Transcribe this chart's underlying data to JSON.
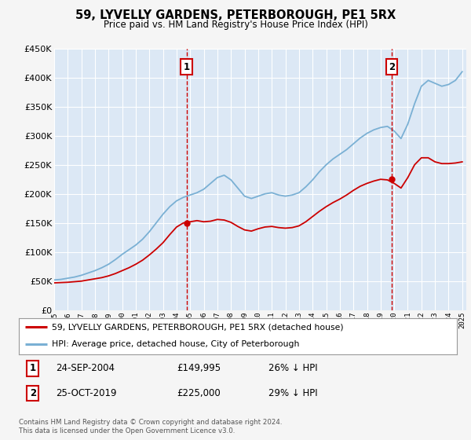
{
  "title": "59, LYVELLY GARDENS, PETERBOROUGH, PE1 5RX",
  "subtitle": "Price paid vs. HM Land Registry's House Price Index (HPI)",
  "fig_bg_color": "#f5f5f5",
  "plot_bg_color": "#dce8f5",
  "sale1_price": 149995,
  "sale1_x": 2004.73,
  "sale2_price": 225000,
  "sale2_x": 2019.82,
  "ylim": [
    0,
    450000
  ],
  "yticks": [
    0,
    50000,
    100000,
    150000,
    200000,
    250000,
    300000,
    350000,
    400000,
    450000
  ],
  "red_line_color": "#cc0000",
  "blue_line_color": "#7ab0d4",
  "dashed_color": "#cc0000",
  "legend_line1": "59, LYVELLY GARDENS, PETERBOROUGH, PE1 5RX (detached house)",
  "legend_line2": "HPI: Average price, detached house, City of Peterborough",
  "footer": "Contains HM Land Registry data © Crown copyright and database right 2024.\nThis data is licensed under the Open Government Licence v3.0.",
  "hpi_years": [
    1995,
    1995.5,
    1996,
    1996.5,
    1997,
    1997.5,
    1998,
    1998.5,
    1999,
    1999.5,
    2000,
    2000.5,
    2001,
    2001.5,
    2002,
    2002.5,
    2003,
    2003.5,
    2004,
    2004.5,
    2005,
    2005.5,
    2006,
    2006.5,
    2007,
    2007.5,
    2008,
    2008.5,
    2009,
    2009.5,
    2010,
    2010.5,
    2011,
    2011.5,
    2012,
    2012.5,
    2013,
    2013.5,
    2014,
    2014.5,
    2015,
    2015.5,
    2016,
    2016.5,
    2017,
    2017.5,
    2018,
    2018.5,
    2019,
    2019.5,
    2020,
    2020.5,
    2021,
    2021.5,
    2022,
    2022.5,
    2023,
    2023.5,
    2024,
    2024.5,
    2025
  ],
  "hpi_values": [
    52000,
    53000,
    55000,
    57000,
    60000,
    64000,
    68000,
    73000,
    79000,
    87000,
    96000,
    104000,
    112000,
    122000,
    135000,
    150000,
    165000,
    178000,
    188000,
    194000,
    198000,
    202000,
    208000,
    218000,
    228000,
    232000,
    224000,
    210000,
    196000,
    192000,
    196000,
    200000,
    202000,
    198000,
    196000,
    198000,
    202000,
    212000,
    224000,
    238000,
    250000,
    260000,
    268000,
    276000,
    286000,
    296000,
    304000,
    310000,
    314000,
    316000,
    308000,
    295000,
    320000,
    355000,
    385000,
    395000,
    390000,
    385000,
    388000,
    395000,
    410000
  ],
  "red_years": [
    1995,
    1995.5,
    1996,
    1996.5,
    1997,
    1997.5,
    1998,
    1998.5,
    1999,
    1999.5,
    2000,
    2000.5,
    2001,
    2001.5,
    2002,
    2002.5,
    2003,
    2003.5,
    2004,
    2004.5,
    2005,
    2005.5,
    2006,
    2006.5,
    2007,
    2007.5,
    2008,
    2008.5,
    2009,
    2009.5,
    2010,
    2010.5,
    2011,
    2011.5,
    2012,
    2012.5,
    2013,
    2013.5,
    2014,
    2014.5,
    2015,
    2015.5,
    2016,
    2016.5,
    2017,
    2017.5,
    2018,
    2018.5,
    2019,
    2019.5,
    2020,
    2020.5,
    2021,
    2021.5,
    2022,
    2022.5,
    2023,
    2023.5,
    2024,
    2024.5,
    2025
  ],
  "red_values": [
    47000,
    47500,
    48000,
    49000,
    50000,
    52000,
    54000,
    56000,
    59000,
    63000,
    68000,
    73000,
    79000,
    86000,
    95000,
    105000,
    116000,
    130000,
    143000,
    149995,
    152000,
    154000,
    152000,
    153000,
    156000,
    155000,
    151000,
    144000,
    138000,
    136000,
    140000,
    143000,
    144000,
    142000,
    141000,
    142000,
    145000,
    152000,
    161000,
    170000,
    178000,
    185000,
    191000,
    198000,
    206000,
    213000,
    218000,
    222000,
    225000,
    224000,
    218000,
    210000,
    228000,
    250000,
    262000,
    262000,
    255000,
    252000,
    252000,
    253000,
    255000
  ]
}
